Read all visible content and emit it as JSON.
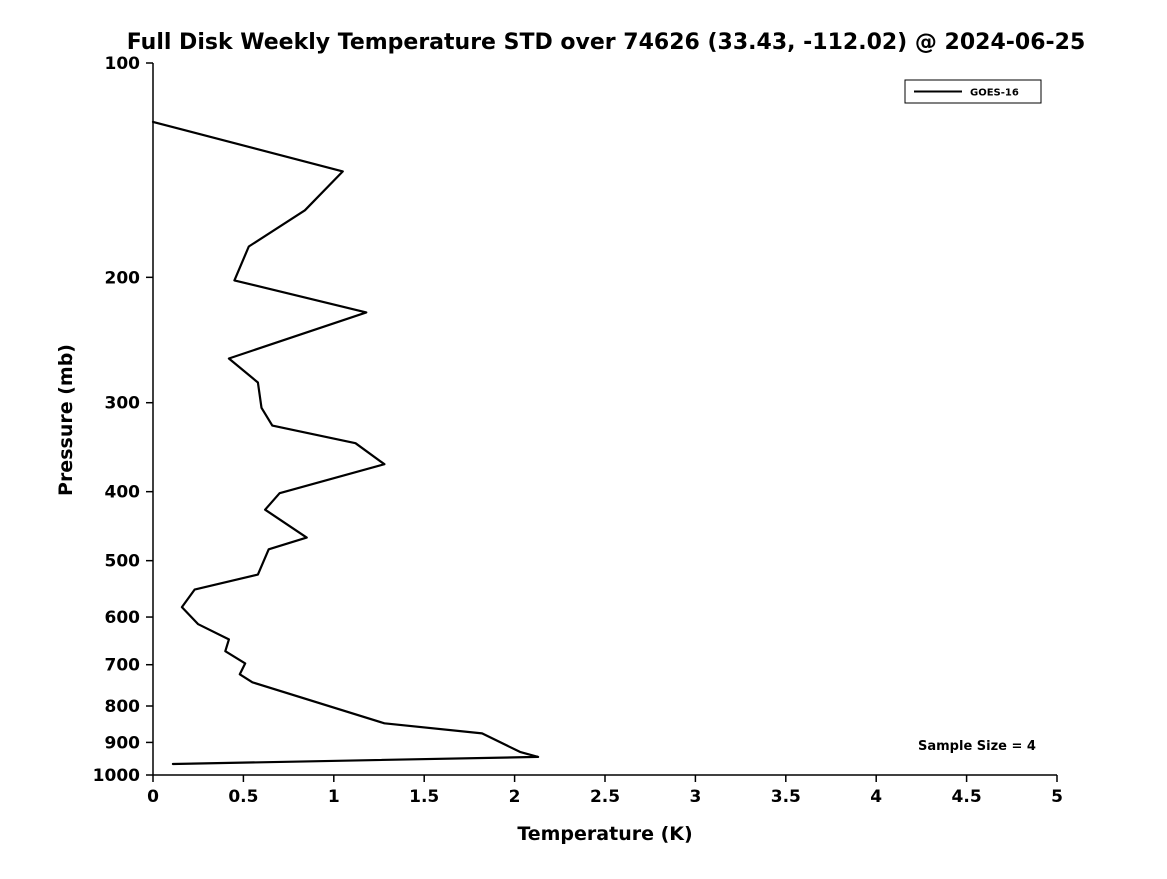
{
  "chart_data": {
    "type": "line",
    "title": "Full Disk Weekly Temperature STD over 74626 (33.43, -112.02) @ 2024-06-25",
    "xlabel": "Temperature (K)",
    "ylabel": "Pressure (mb)",
    "xlim": [
      0,
      5
    ],
    "ylim": [
      100,
      1000
    ],
    "y_scale": "log",
    "y_inverted": true,
    "grid": false,
    "x_ticks": [
      0,
      0.5,
      1,
      1.5,
      2,
      2.5,
      3,
      3.5,
      4,
      4.5,
      5
    ],
    "x_tick_labels": [
      "0",
      "0.5",
      "1",
      "1.5",
      "2",
      "2.5",
      "3",
      "3.5",
      "4",
      "4.5",
      "5"
    ],
    "y_ticks": [
      100,
      200,
      300,
      400,
      500,
      600,
      700,
      800,
      900,
      1000
    ],
    "y_tick_labels": [
      "100",
      "200",
      "300",
      "400",
      "500",
      "600",
      "700",
      "800",
      "900",
      "1000"
    ],
    "legend": {
      "position": "top-right",
      "entries": [
        {
          "label": "GOES-16",
          "color": "#000000",
          "line_width": 2
        }
      ]
    },
    "annotation": "Sample Size = 4",
    "series": [
      {
        "name": "GOES-16",
        "color": "#000000",
        "points_format": [
          "temperature_K",
          "pressure_mb"
        ],
        "points": [
          [
            0.0,
            121
          ],
          [
            1.05,
            142
          ],
          [
            0.84,
            161
          ],
          [
            0.53,
            181
          ],
          [
            0.45,
            202
          ],
          [
            1.18,
            224
          ],
          [
            0.42,
            260
          ],
          [
            0.58,
            281
          ],
          [
            0.6,
            305
          ],
          [
            0.66,
            323
          ],
          [
            1.12,
            342
          ],
          [
            1.28,
            366
          ],
          [
            0.7,
            402
          ],
          [
            0.62,
            424
          ],
          [
            0.85,
            464
          ],
          [
            0.64,
            482
          ],
          [
            0.58,
            523
          ],
          [
            0.23,
            549
          ],
          [
            0.16,
            581
          ],
          [
            0.25,
            614
          ],
          [
            0.42,
            645
          ],
          [
            0.4,
            670
          ],
          [
            0.51,
            697
          ],
          [
            0.48,
            722
          ],
          [
            0.55,
            741
          ],
          [
            1.28,
            846
          ],
          [
            1.82,
            874
          ],
          [
            2.03,
            928
          ],
          [
            2.13,
            943
          ],
          [
            0.11,
            965
          ]
        ]
      }
    ]
  },
  "colors": {
    "background": "#ffffff",
    "line": "#000000",
    "text": "#000000"
  }
}
